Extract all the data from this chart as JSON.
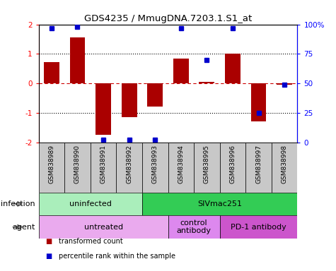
{
  "title": "GDS4235 / MmugDNA.7203.1.S1_at",
  "samples": [
    "GSM838989",
    "GSM838990",
    "GSM838991",
    "GSM838992",
    "GSM838993",
    "GSM838994",
    "GSM838995",
    "GSM838996",
    "GSM838997",
    "GSM838998"
  ],
  "bar_values": [
    0.72,
    1.55,
    -1.75,
    -1.15,
    -0.8,
    0.85,
    0.04,
    1.0,
    -1.3,
    -0.05
  ],
  "percentile_values": [
    97,
    98,
    2,
    2,
    2,
    97,
    70,
    97,
    25,
    49
  ],
  "ylim": [
    -2,
    2
  ],
  "bar_color": "#AA0000",
  "dot_color": "#0000CC",
  "hline_color": "#CC0000",
  "infection_groups": [
    {
      "label": "uninfected",
      "start": 0,
      "end": 4,
      "color": "#AAEEBB"
    },
    {
      "label": "SIVmac251",
      "start": 4,
      "end": 10,
      "color": "#33CC55"
    }
  ],
  "agent_groups": [
    {
      "label": "untreated",
      "start": 0,
      "end": 5,
      "color": "#EAAAEE"
    },
    {
      "label": "control\nantibody",
      "start": 5,
      "end": 7,
      "color": "#DD88EE"
    },
    {
      "label": "PD-1 antibody",
      "start": 7,
      "end": 10,
      "color": "#CC55CC"
    }
  ],
  "legend_items": [
    {
      "color": "#AA0000",
      "label": "transformed count"
    },
    {
      "color": "#0000CC",
      "label": "percentile rank within the sample"
    }
  ]
}
